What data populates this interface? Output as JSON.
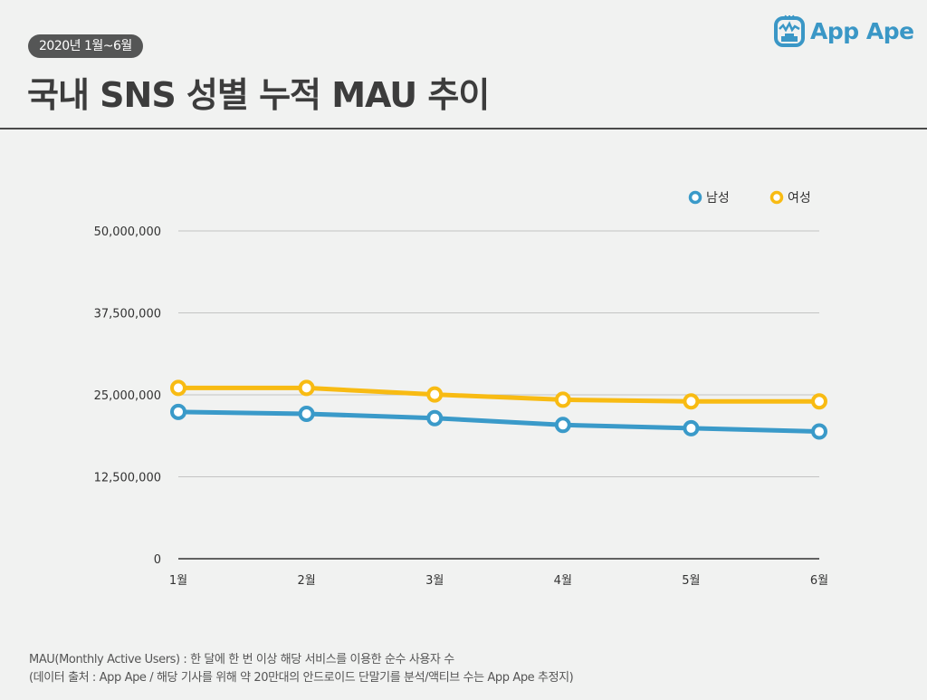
{
  "header": {
    "period_badge": "2020년 1월~6월",
    "title": "국내 SNS 성별 누적 MAU 추이",
    "logo_text": "App Ape",
    "logo_color": "#3a97c6"
  },
  "chart_data": {
    "type": "line",
    "title": "국내 SNS 성별 누적 MAU 추이",
    "categories": [
      "1월",
      "2월",
      "3월",
      "4월",
      "5월",
      "6월"
    ],
    "series": [
      {
        "name": "남성",
        "color": "#3a9ac9",
        "values": [
          22400000,
          22100000,
          21450000,
          20400000,
          19900000,
          19400000
        ]
      },
      {
        "name": "여성",
        "color": "#f8bb13",
        "values": [
          26050000,
          26050000,
          25050000,
          24250000,
          24000000,
          24000000
        ]
      }
    ],
    "yticks": [
      0,
      12500000,
      25000000,
      37500000,
      50000000
    ],
    "ytick_labels": [
      "0",
      "12,500,000",
      "25,000,000",
      "37,500,000",
      "50,000,000"
    ],
    "ylim": [
      0,
      50000000
    ],
    "grid": true,
    "legend_position": "top-right",
    "marker": "hollow-circle"
  },
  "footer": {
    "line1": "MAU(Monthly Active Users) : 한 달에 한 번 이상 해당 서비스를 이용한 순수 사용자 수",
    "line2": "(데이터 출처 : App Ape / 해당 기사를 위해 약 20만대의 안드로이드 단말기를 분석/액티브 수는 App Ape 추정지)"
  }
}
